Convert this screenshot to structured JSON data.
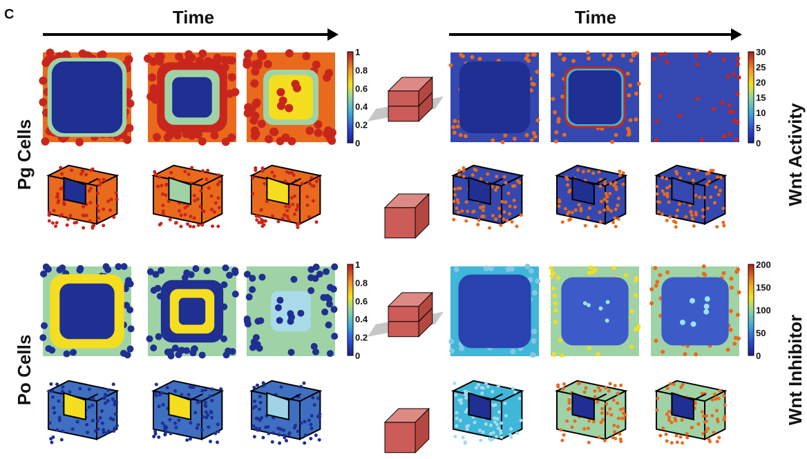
{
  "panel_letter": "C",
  "time_label_left": "Time",
  "time_label_right": "Time",
  "row_labels": {
    "pg": "Pg Cells",
    "po": "Po Cells"
  },
  "side_labels": {
    "activity": "Wnt Activity",
    "inhibitor": "Wnt Inhibitor"
  },
  "colorbars": {
    "pg": [
      "1",
      "0.8",
      "0.6",
      "0.4",
      "0.2",
      "0"
    ],
    "po": [
      "1",
      "0.8",
      "0.6",
      "0.4",
      "0.2",
      "0"
    ],
    "activity": [
      "30",
      "25",
      "20",
      "15",
      "10",
      "5",
      "0"
    ],
    "inhibitor": [
      "200",
      "150",
      "100",
      "50",
      "0"
    ]
  },
  "colors": {
    "dark_blue": "#1f2f92",
    "red": "#c8261d",
    "orange": "#e96a1c",
    "yellow": "#f4de1f",
    "light_green": "#9fd3a6",
    "cyan": "#40b6d8",
    "cube_fill": "#cc5c57"
  }
}
